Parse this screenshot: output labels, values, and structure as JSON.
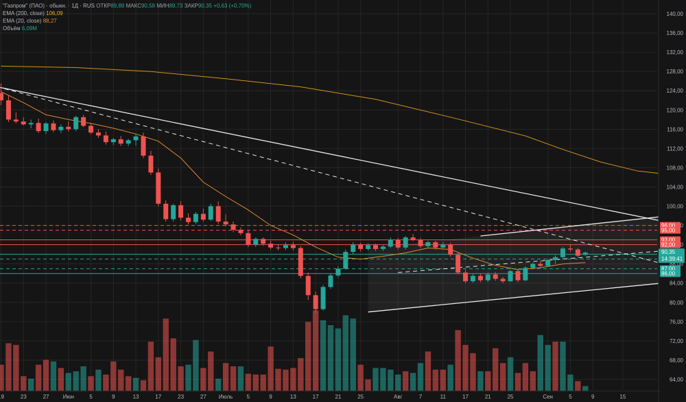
{
  "legend": {
    "symbol": "\"Газпром\" (ПАО) · обыкн. · 1Д · RUS",
    "open_label": "ОТКР",
    "open_value": "89,89",
    "high_label": "МАКС",
    "high_value": "90,58",
    "low_label": "МИН",
    "low_value": "89,73",
    "close_label": "ЗАКР",
    "close_value": "90,35",
    "change": "+0,63 (+0,70%)",
    "ema200_label": "EMA (200, close)",
    "ema200_value": "106,09",
    "ema20_label": "EMA (20, close)",
    "ema20_value": "88,27",
    "volume_label": "Объём",
    "volume_value": "6,09M"
  },
  "colors": {
    "background": "#151515",
    "up": "#26a69a",
    "down": "#ef5350",
    "ema200": "#f5a623",
    "ema20": "#e0892c",
    "grid": "#262626",
    "axis_text": "#b2b5be",
    "price_label": "#26a69a",
    "red_level": "#ef5350",
    "green_level": "#26a69a"
  },
  "chart_data": {
    "type": "candlestick",
    "price_range": [
      62,
      141
    ],
    "price_ticks": [
      "140,00",
      "136,00",
      "132,00",
      "128,00",
      "124,00",
      "120,00",
      "116,00",
      "112,00",
      "108,00",
      "104,00",
      "100,00",
      "96,00",
      "92,00",
      "88,00",
      "84,00",
      "80,00",
      "76,00",
      "72,00",
      "68,00",
      "64,00"
    ],
    "date_ticks": [
      {
        "label": "19",
        "bar": 0
      },
      {
        "label": "23",
        "bar": 3
      },
      {
        "label": "27",
        "bar": 6
      },
      {
        "label": "Июн",
        "bar": 9
      },
      {
        "label": "5",
        "bar": 12
      },
      {
        "label": "9",
        "bar": 15
      },
      {
        "label": "13",
        "bar": 18
      },
      {
        "label": "17",
        "bar": 21
      },
      {
        "label": "23",
        "bar": 24
      },
      {
        "label": "27",
        "bar": 27
      },
      {
        "label": "Июль",
        "bar": 30
      },
      {
        "label": "5",
        "bar": 33
      },
      {
        "label": "9",
        "bar": 36
      },
      {
        "label": "13",
        "bar": 39
      },
      {
        "label": "17",
        "bar": 42
      },
      {
        "label": "21",
        "bar": 45
      },
      {
        "label": "25",
        "bar": 48
      },
      {
        "label": "Авг",
        "bar": 53
      },
      {
        "label": "7",
        "bar": 56
      },
      {
        "label": "11",
        "bar": 59
      },
      {
        "label": "17",
        "bar": 62
      },
      {
        "label": "21",
        "bar": 65
      },
      {
        "label": "25",
        "bar": 68
      },
      {
        "label": "Сен",
        "bar": 73
      },
      {
        "label": "5",
        "bar": 76
      },
      {
        "label": "9",
        "bar": 79
      },
      {
        "label": "15",
        "bar": 83
      }
    ],
    "candles": [
      [
        123.5,
        125.5,
        121.0,
        122.0
      ],
      [
        122.0,
        123.0,
        117.5,
        118.0
      ],
      [
        118.0,
        119.5,
        117.2,
        117.6
      ],
      [
        117.6,
        118.5,
        116.8,
        117.0
      ],
      [
        117.0,
        118.0,
        116.2,
        117.3
      ],
      [
        117.3,
        118.2,
        115.2,
        115.6
      ],
      [
        115.6,
        117.5,
        115.0,
        117.2
      ],
      [
        117.2,
        117.8,
        115.4,
        115.8
      ],
      [
        115.8,
        117.0,
        115.2,
        116.5
      ],
      [
        116.5,
        117.6,
        115.5,
        116.0
      ],
      [
        116.0,
        118.8,
        115.6,
        118.5
      ],
      [
        118.5,
        119.0,
        116.4,
        116.7
      ],
      [
        116.7,
        117.3,
        115.0,
        115.3
      ],
      [
        115.3,
        116.0,
        114.2,
        114.7
      ],
      [
        114.7,
        115.5,
        112.8,
        113.3
      ],
      [
        113.3,
        114.2,
        112.7,
        113.9
      ],
      [
        113.9,
        114.6,
        112.5,
        113.0
      ],
      [
        113.0,
        114.0,
        112.5,
        113.7
      ],
      [
        113.7,
        115.0,
        112.6,
        114.5
      ],
      [
        114.5,
        115.3,
        110.0,
        110.5
      ],
      [
        110.5,
        111.5,
        106.5,
        107.0
      ],
      [
        107.0,
        107.8,
        100.0,
        100.5
      ],
      [
        100.5,
        101.2,
        96.8,
        97.3
      ],
      [
        97.3,
        100.5,
        96.8,
        100.2
      ],
      [
        100.2,
        101.0,
        97.0,
        97.6
      ],
      [
        97.6,
        98.5,
        96.2,
        96.7
      ],
      [
        96.7,
        98.8,
        96.3,
        98.4
      ],
      [
        98.4,
        99.5,
        96.8,
        97.2
      ],
      [
        97.2,
        100.5,
        96.9,
        100.0
      ],
      [
        100.0,
        101.0,
        96.3,
        96.8
      ],
      [
        96.8,
        98.3,
        95.8,
        96.2
      ],
      [
        96.2,
        96.8,
        94.6,
        95.1
      ],
      [
        95.1,
        95.6,
        94.0,
        94.4
      ],
      [
        94.4,
        95.0,
        91.5,
        92.0
      ],
      [
        92.0,
        93.5,
        91.5,
        93.2
      ],
      [
        93.2,
        93.5,
        91.8,
        92.2
      ],
      [
        92.2,
        92.8,
        91.0,
        91.4
      ],
      [
        91.4,
        92.0,
        90.8,
        91.3
      ],
      [
        91.3,
        92.5,
        90.9,
        91.9
      ],
      [
        91.9,
        92.6,
        90.8,
        91.3
      ],
      [
        91.3,
        91.7,
        85.0,
        85.5
      ],
      [
        85.5,
        86.2,
        80.5,
        81.5
      ],
      [
        81.5,
        82.2,
        77.8,
        78.6
      ],
      [
        78.6,
        83.6,
        78.3,
        83.2
      ],
      [
        83.2,
        86.0,
        82.8,
        85.6
      ],
      [
        85.6,
        87.5,
        85.2,
        87.0
      ],
      [
        87.0,
        91.0,
        86.8,
        90.5
      ],
      [
        90.5,
        92.5,
        90.0,
        92.0
      ],
      [
        92.0,
        92.4,
        90.6,
        91.1
      ],
      [
        91.1,
        92.3,
        90.8,
        91.9
      ],
      [
        91.9,
        92.2,
        90.7,
        91.1
      ],
      [
        91.1,
        91.9,
        90.7,
        91.6
      ],
      [
        91.6,
        93.5,
        91.3,
        93.0
      ],
      [
        93.0,
        93.4,
        91.0,
        91.4
      ],
      [
        91.4,
        93.8,
        91.0,
        93.5
      ],
      [
        93.5,
        94.2,
        92.7,
        93.0
      ],
      [
        93.0,
        93.4,
        91.3,
        91.7
      ],
      [
        91.7,
        92.8,
        91.2,
        92.5
      ],
      [
        92.5,
        92.8,
        91.0,
        91.4
      ],
      [
        91.4,
        92.5,
        91.0,
        92.0
      ],
      [
        92.0,
        92.4,
        89.5,
        89.9
      ],
      [
        89.9,
        90.3,
        85.8,
        86.2
      ],
      [
        86.2,
        86.8,
        84.0,
        84.4
      ],
      [
        84.4,
        86.0,
        84.1,
        85.5
      ],
      [
        85.5,
        86.0,
        84.2,
        84.6
      ],
      [
        84.6,
        86.2,
        84.2,
        85.8
      ],
      [
        85.8,
        86.3,
        84.5,
        84.9
      ],
      [
        84.9,
        85.3,
        84.0,
        84.4
      ],
      [
        84.4,
        86.8,
        84.2,
        86.5
      ],
      [
        86.5,
        87.0,
        84.2,
        84.6
      ],
      [
        84.6,
        87.5,
        84.4,
        87.2
      ],
      [
        87.2,
        88.3,
        87.0,
        88.0
      ],
      [
        88.0,
        88.6,
        87.3,
        87.6
      ],
      [
        87.6,
        89.0,
        87.4,
        88.8
      ],
      [
        88.8,
        89.8,
        88.0,
        89.4
      ],
      [
        89.4,
        91.5,
        89.2,
        91.2
      ],
      [
        91.2,
        92.0,
        90.6,
        91.0
      ],
      [
        91.0,
        91.3,
        89.4,
        89.7
      ],
      [
        89.89,
        90.58,
        89.73,
        90.35
      ]
    ],
    "volume_range": [
      0,
      12
    ],
    "volumes": [
      [
        3.2,
        "down"
      ],
      [
        5.8,
        "down"
      ],
      [
        5.6,
        "down"
      ],
      [
        1.8,
        "down"
      ],
      [
        1.5,
        "up"
      ],
      [
        3.2,
        "down"
      ],
      [
        3.8,
        "down"
      ],
      [
        3.6,
        "up"
      ],
      [
        2.8,
        "down"
      ],
      [
        2.2,
        "up"
      ],
      [
        2.4,
        "up"
      ],
      [
        3.0,
        "up"
      ],
      [
        1.8,
        "down"
      ],
      [
        2.6,
        "up"
      ],
      [
        2.0,
        "down"
      ],
      [
        3.6,
        "down"
      ],
      [
        2.6,
        "down"
      ],
      [
        1.8,
        "down"
      ],
      [
        1.6,
        "up"
      ],
      [
        1.3,
        "down"
      ],
      [
        6.0,
        "down"
      ],
      [
        4.1,
        "down"
      ],
      [
        8.8,
        "down"
      ],
      [
        6.4,
        "down"
      ],
      [
        3.0,
        "down"
      ],
      [
        3.2,
        "up"
      ],
      [
        6.2,
        "up"
      ],
      [
        2.8,
        "down"
      ],
      [
        4.8,
        "down"
      ],
      [
        1.5,
        "up"
      ],
      [
        3.4,
        "down"
      ],
      [
        3.0,
        "down"
      ],
      [
        3.0,
        "up"
      ],
      [
        2.1,
        "down"
      ],
      [
        2.0,
        "down"
      ],
      [
        2.0,
        "down"
      ],
      [
        5.4,
        "down"
      ],
      [
        2.7,
        "down"
      ],
      [
        2.6,
        "down"
      ],
      [
        2.8,
        "down"
      ],
      [
        4.0,
        "down"
      ],
      [
        8.4,
        "down"
      ],
      [
        9.8,
        "down"
      ],
      [
        8.6,
        "up"
      ],
      [
        8.0,
        "up"
      ],
      [
        7.6,
        "up"
      ],
      [
        9.2,
        "up"
      ],
      [
        8.8,
        "up"
      ],
      [
        3.2,
        "down"
      ],
      [
        1.4,
        "down"
      ],
      [
        2.8,
        "up"
      ],
      [
        2.8,
        "up"
      ],
      [
        2.6,
        "up"
      ],
      [
        2.0,
        "up"
      ],
      [
        2.4,
        "down"
      ],
      [
        2.2,
        "up"
      ],
      [
        3.4,
        "up"
      ],
      [
        4.8,
        "down"
      ],
      [
        2.6,
        "down"
      ],
      [
        2.6,
        "down"
      ],
      [
        3.2,
        "up"
      ],
      [
        7.4,
        "down"
      ],
      [
        5.6,
        "down"
      ],
      [
        4.6,
        "down"
      ],
      [
        2.4,
        "up"
      ],
      [
        2.4,
        "down"
      ],
      [
        5.2,
        "down"
      ],
      [
        3.4,
        "down"
      ],
      [
        4.1,
        "up"
      ],
      [
        2.2,
        "down"
      ],
      [
        3.4,
        "down"
      ],
      [
        2.4,
        "down"
      ],
      [
        6.8,
        "up"
      ],
      [
        5.6,
        "up"
      ],
      [
        6.0,
        "down"
      ],
      [
        6.0,
        "up"
      ],
      [
        2.0,
        "up"
      ],
      [
        1.2,
        "down"
      ],
      [
        0.6,
        "up"
      ]
    ],
    "ema200": [
      [
        0,
        129.1
      ],
      [
        10,
        128.8
      ],
      [
        20,
        128.0
      ],
      [
        30,
        126.5
      ],
      [
        40,
        124.8
      ],
      [
        50,
        122.2
      ],
      [
        60,
        118.5
      ],
      [
        70,
        114.6
      ],
      [
        75,
        111.8
      ],
      [
        80,
        109.2
      ],
      [
        85,
        107.3
      ],
      [
        92,
        106.09
      ]
    ],
    "ema20": [
      [
        0,
        123.8
      ],
      [
        3,
        121.5
      ],
      [
        6,
        119.0
      ],
      [
        9,
        118.0
      ],
      [
        12,
        117.2
      ],
      [
        15,
        116.2
      ],
      [
        18,
        115.0
      ],
      [
        21,
        113.5
      ],
      [
        24,
        110.0
      ],
      [
        27,
        105.0
      ],
      [
        30,
        102.0
      ],
      [
        33,
        99.2
      ],
      [
        36,
        96.0
      ],
      [
        39,
        94.0
      ],
      [
        42,
        91.5
      ],
      [
        45,
        89.4
      ],
      [
        48,
        89.0
      ],
      [
        51,
        89.6
      ],
      [
        54,
        90.3
      ],
      [
        57,
        91.3
      ],
      [
        60,
        91.0
      ],
      [
        63,
        89.2
      ],
      [
        66,
        87.7
      ],
      [
        69,
        86.8
      ],
      [
        72,
        87.2
      ],
      [
        75,
        88.0
      ],
      [
        78,
        88.27
      ]
    ],
    "trendlines": [
      {
        "style": "solid",
        "from": [
          -0.5,
          124.8
        ],
        "to": [
          100,
          93.2
        ]
      },
      {
        "style": "dashed",
        "from": [
          -0.5,
          124.8
        ],
        "to": [
          100,
          83.2
        ]
      },
      {
        "style": "solid",
        "from": [
          49,
          78.0
        ],
        "to": [
          100,
          85.8
        ]
      },
      {
        "style": "solid",
        "from": [
          64,
          93.8
        ],
        "to": [
          100,
          99.8
        ]
      },
      {
        "style": "dashed",
        "from": [
          53,
          86.2
        ],
        "to": [
          100,
          92.2
        ]
      }
    ],
    "levels": [
      {
        "price": 96.0,
        "label": "96,00",
        "kind": "red",
        "dash": true
      },
      {
        "price": 95.0,
        "label": "95,00",
        "kind": "red",
        "dash": true
      },
      {
        "price": 93.0,
        "label": "93,00",
        "kind": "red",
        "dash": false
      },
      {
        "price": 92.0,
        "label": "92,00",
        "kind": "red",
        "dash": false
      },
      {
        "price": 90.0,
        "label": "90,00",
        "kind": "green",
        "dash": false
      },
      {
        "price": 89.0,
        "label": "89,00",
        "kind": "green",
        "dash": true
      },
      {
        "price": 87.0,
        "label": "87,00",
        "kind": "green",
        "dash": true
      },
      {
        "price": 86.0,
        "label": "86,00",
        "kind": "green",
        "dash": false
      }
    ],
    "last_price": {
      "price": 90.35,
      "label": "90,35",
      "countdown": "14:39:41"
    }
  }
}
